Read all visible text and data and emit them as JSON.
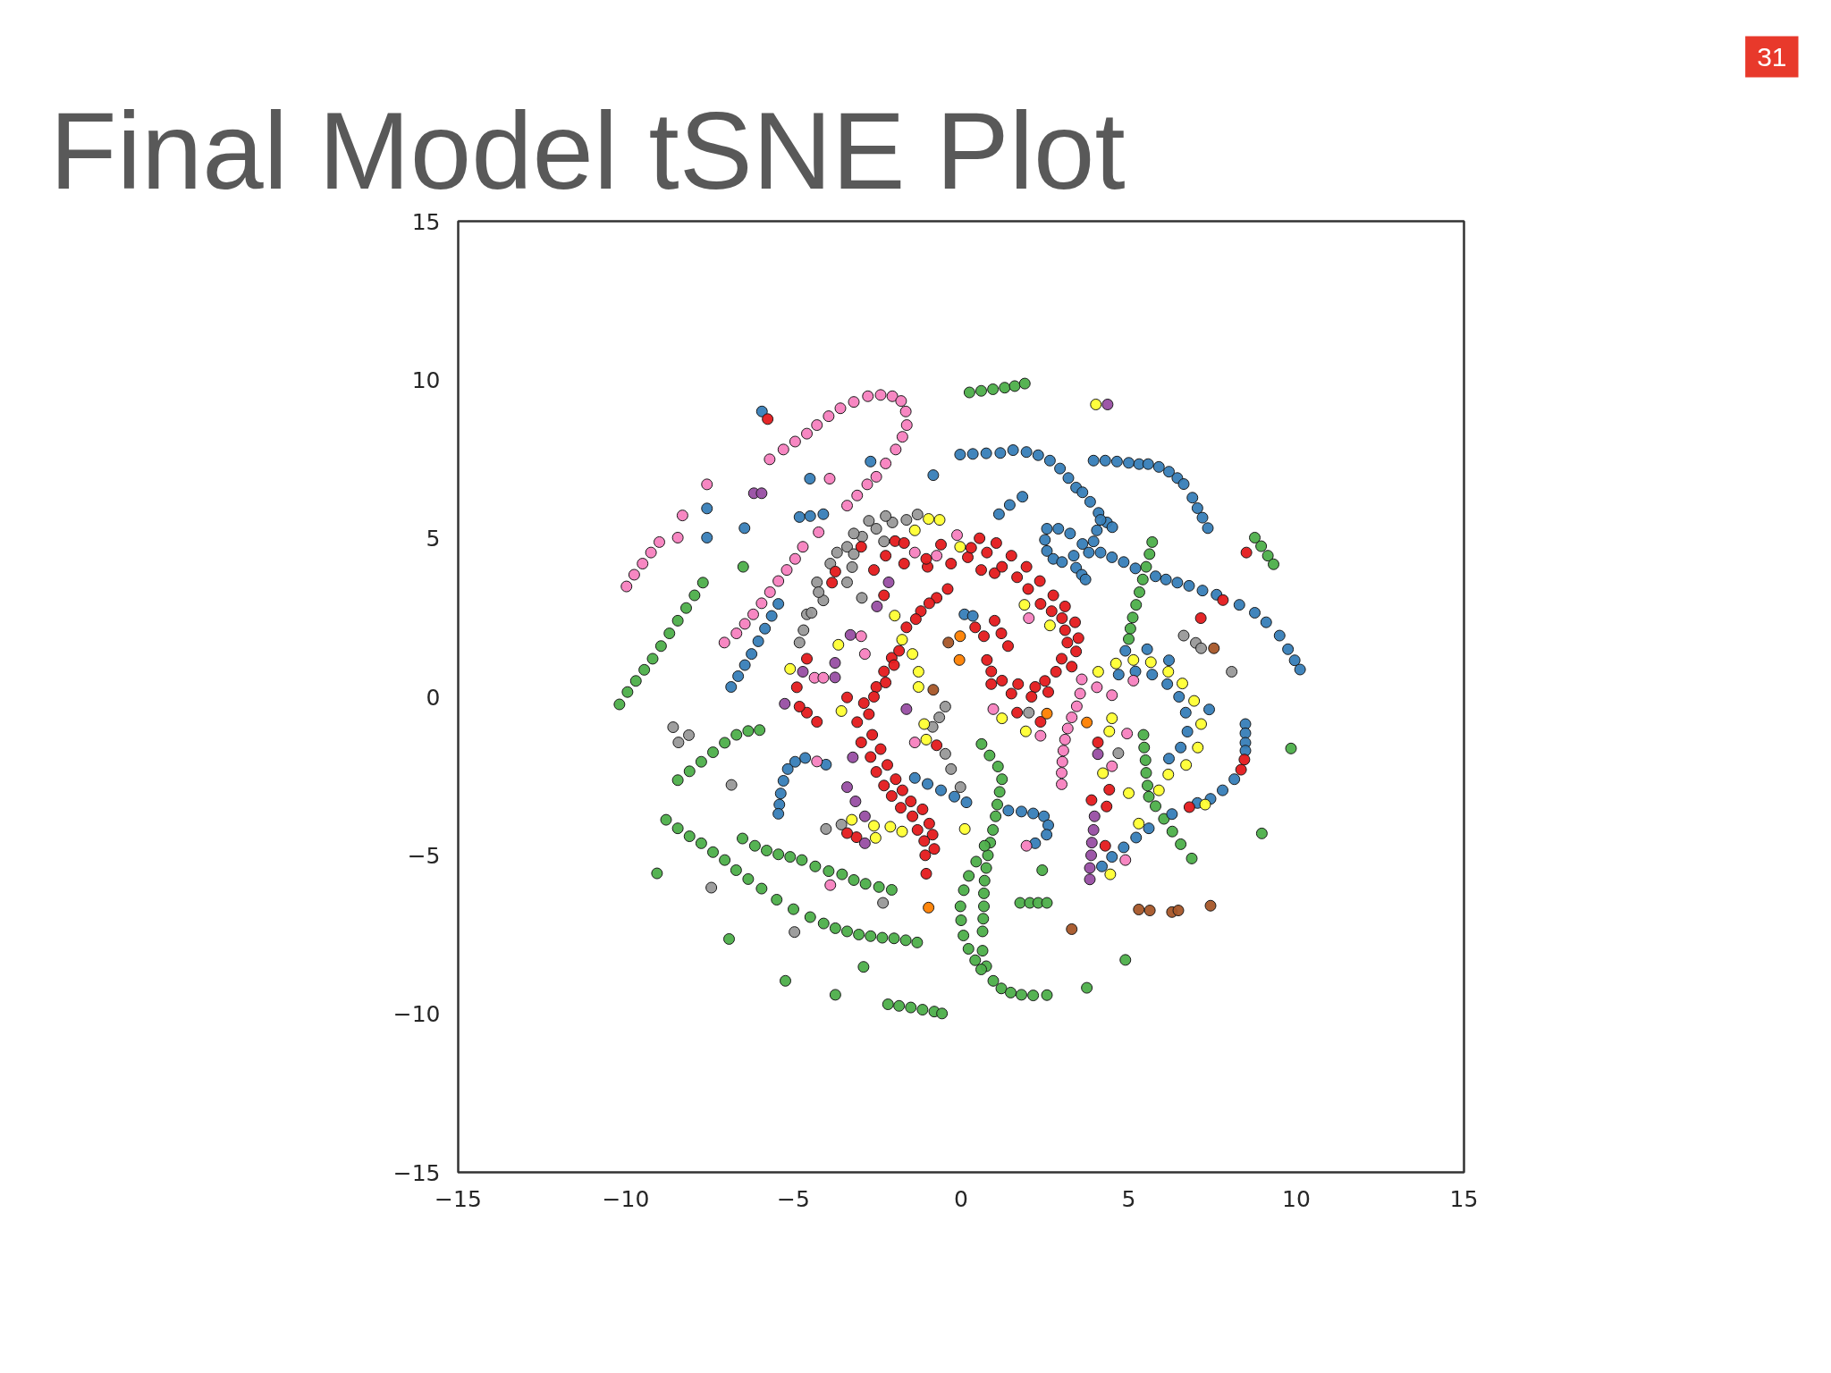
{
  "chart_data": {
    "type": "scatter",
    "title": "Final Model tSNE Plot",
    "annotations": [
      "31"
    ],
    "marker": "circle",
    "grid": false,
    "xlim": [
      -15,
      15
    ],
    "ylim": [
      -15,
      15
    ],
    "xticks": [
      {
        "value": -15,
        "label": "−15"
      },
      {
        "value": -10,
        "label": "−10"
      },
      {
        "value": -5,
        "label": "−5"
      },
      0,
      5,
      10,
      15
    ],
    "yticks": [
      {
        "value": -15,
        "label": "−15"
      },
      {
        "value": -10,
        "label": "−10"
      },
      {
        "value": -5,
        "label": "−5"
      },
      0,
      5,
      10,
      15
    ],
    "series": [
      {
        "color": "#999999",
        "x": [
          -4.82,
          -4.6,
          -4.3,
          -3.9,
          -3.4,
          -2.95,
          -2.53,
          -2.05,
          -1.63,
          -1.3,
          -3.4,
          -2.96,
          -4.11,
          -4.46,
          -3.2,
          -2.3,
          -4.7,
          -3.25,
          -3.7,
          -4.25,
          -2.75,
          -2.25,
          -3.2,
          -8.59,
          -8.43,
          -8.12,
          -6.85,
          -7.45,
          -4.97,
          -2.33,
          -4.03,
          -3.57,
          -0.85,
          -0.65,
          -0.47,
          -0.47,
          -0.3,
          6.64,
          7.0,
          7.16,
          8.07,
          -0.02,
          4.69,
          2.02
        ],
        "values": [
          1.71,
          2.6,
          3.61,
          4.2,
          4.73,
          5.05,
          5.3,
          5.5,
          5.58,
          5.75,
          3.61,
          3.12,
          3.04,
          2.65,
          4.5,
          4.9,
          2.1,
          4.09,
          4.55,
          3.3,
          5.55,
          5.7,
          5.15,
          -0.96,
          -1.44,
          -1.21,
          -2.78,
          -6.02,
          -7.42,
          -6.5,
          -4.17,
          -4.03,
          -0.95,
          -0.65,
          -0.31,
          -1.8,
          -2.28,
          1.93,
          1.7,
          1.53,
          0.79,
          -2.85,
          -1.78,
          -0.5
        ]
      },
      {
        "color": "#4daf4a",
        "x": [
          0.25,
          0.6,
          0.95,
          1.3,
          1.6,
          1.9,
          -10.19,
          -9.95,
          -9.7,
          -9.45,
          -9.2,
          -8.95,
          -8.7,
          -8.45,
          -8.2,
          -7.95,
          -7.7,
          -8.45,
          -8.1,
          -7.75,
          -7.4,
          -7.05,
          -6.7,
          -6.35,
          -6.01,
          -8.8,
          -8.45,
          -8.1,
          -7.75,
          -7.4,
          -7.05,
          -6.71,
          -6.35,
          -5.95,
          -5.5,
          -5.0,
          -4.5,
          -4.1,
          -3.75,
          -3.4,
          -3.05,
          -2.7,
          -2.35,
          -2.0,
          -1.65,
          -1.31,
          -6.52,
          -6.15,
          -5.8,
          -5.45,
          -5.1,
          -4.75,
          -4.35,
          -3.95,
          -3.55,
          -3.2,
          -2.85,
          -2.45,
          -2.07,
          -2.18,
          -1.85,
          -1.5,
          -1.15,
          -0.8,
          -0.57,
          0.61,
          0.85,
          1.1,
          1.22,
          1.15,
          1.08,
          1.03,
          0.95,
          0.87,
          0.8,
          0.75,
          0.7,
          0.68,
          0.68,
          0.66,
          0.64,
          0.64,
          0.75,
          0.96,
          1.2,
          1.48,
          1.8,
          2.15,
          2.56,
          0.7,
          0.45,
          0.23,
          0.08,
          -0.02,
          0.0,
          0.07,
          0.22,
          0.42,
          0.6,
          5.7,
          5.62,
          5.52,
          5.42,
          5.32,
          5.22,
          5.12,
          5.05,
          5.0,
          8.76,
          8.95,
          9.15,
          9.32,
          5.44,
          5.46,
          5.5,
          5.52,
          5.56,
          5.6,
          5.8,
          6.05,
          6.3,
          6.55,
          6.88,
          1.76,
          2.05,
          2.3,
          2.56,
          -6.5,
          -9.07,
          -6.92,
          -5.24,
          -3.75,
          -2.91,
          2.42,
          3.75,
          4.9,
          9.84,
          8.97
        ],
        "values": [
          9.6,
          9.65,
          9.7,
          9.75,
          9.8,
          9.88,
          -0.24,
          0.15,
          0.5,
          0.85,
          1.2,
          1.6,
          2.0,
          2.4,
          2.8,
          3.2,
          3.6,
          -2.63,
          -2.35,
          -2.05,
          -1.75,
          -1.45,
          -1.2,
          -1.08,
          -1.05,
          -3.88,
          -4.15,
          -4.4,
          -4.62,
          -4.9,
          -5.15,
          -5.47,
          -5.75,
          -6.05,
          -6.4,
          -6.7,
          -6.95,
          -7.15,
          -7.3,
          -7.4,
          -7.5,
          -7.55,
          -7.6,
          -7.62,
          -7.68,
          -7.75,
          -4.47,
          -4.7,
          -4.85,
          -4.97,
          -5.05,
          -5.15,
          -5.35,
          -5.5,
          -5.6,
          -5.78,
          -5.9,
          -6.0,
          -6.09,
          -9.7,
          -9.75,
          -9.8,
          -9.87,
          -9.93,
          -9.99,
          -1.49,
          -1.85,
          -2.2,
          -2.6,
          -3.0,
          -3.4,
          -3.77,
          -4.2,
          -4.6,
          -5.0,
          -5.4,
          -5.8,
          -6.2,
          -6.61,
          -7.0,
          -7.4,
          -8.01,
          -8.5,
          -8.96,
          -9.2,
          -9.33,
          -9.4,
          -9.42,
          -9.41,
          -4.7,
          -5.2,
          -5.65,
          -6.1,
          -6.61,
          -7.05,
          -7.53,
          -7.95,
          -8.31,
          -8.6,
          4.88,
          4.5,
          4.1,
          3.7,
          3.3,
          2.9,
          2.5,
          2.15,
          1.82,
          5.02,
          4.75,
          4.45,
          4.18,
          -1.2,
          -1.6,
          -2.0,
          -2.4,
          -2.8,
          -3.15,
          -3.45,
          -3.85,
          -4.25,
          -4.65,
          -5.1,
          -6.5,
          -6.5,
          -6.5,
          -6.5,
          4.1,
          -5.57,
          -7.64,
          -8.96,
          -9.4,
          -8.52,
          -5.47,
          -9.18,
          -8.3,
          -1.63,
          -4.31
        ]
      },
      {
        "color": "#377eb8",
        "x": [
          -5.94,
          -0.03,
          0.35,
          0.75,
          1.17,
          1.55,
          1.95,
          2.3,
          2.65,
          2.95,
          3.2,
          3.43,
          3.62,
          3.85,
          4.1,
          4.35,
          4.51,
          3.95,
          4.3,
          4.65,
          5.0,
          5.31,
          5.58,
          5.9,
          6.2,
          6.45,
          6.64,
          6.9,
          7.05,
          7.2,
          7.36,
          1.13,
          1.45,
          1.83,
          2.56,
          2.5,
          2.56,
          2.75,
          3.01,
          2.9,
          3.25,
          3.62,
          3.36,
          3.43,
          3.6,
          3.71,
          3.81,
          3.95,
          4.05,
          4.16,
          4.16,
          4.5,
          4.85,
          5.2,
          5.8,
          6.11,
          6.45,
          6.8,
          7.2,
          7.62,
          8.3,
          8.76,
          9.1,
          9.5,
          9.75,
          9.95,
          10.11,
          -4.51,
          -4.82,
          -4.5,
          -4.11,
          -2.7,
          -0.83,
          -7.58,
          -7.58,
          -6.46,
          -5.45,
          -5.65,
          -5.85,
          -6.05,
          -6.25,
          -6.45,
          -6.65,
          -6.86,
          -4.03,
          -4.65,
          -4.95,
          -5.17,
          -5.3,
          -5.38,
          -5.42,
          -5.45,
          -1.38,
          -1.0,
          -0.6,
          -0.2,
          0.16,
          1.41,
          1.8,
          2.15,
          2.47,
          2.6,
          2.55,
          2.21,
          4.9,
          5.55,
          6.2,
          7.4,
          4.7,
          5.2,
          5.7,
          6.15,
          6.5,
          6.7,
          6.75,
          6.55,
          6.2,
          4.2,
          4.5,
          4.85,
          5.22,
          5.6,
          6.29,
          7.05,
          7.44,
          7.8,
          8.15,
          8.48,
          8.48,
          8.48,
          8.48,
          0.1,
          0.35
        ],
        "values": [
          9.0,
          7.64,
          7.66,
          7.68,
          7.69,
          7.78,
          7.72,
          7.62,
          7.45,
          7.2,
          6.9,
          6.6,
          6.45,
          6.15,
          5.8,
          5.5,
          5.35,
          7.45,
          7.45,
          7.42,
          7.38,
          7.34,
          7.34,
          7.25,
          7.1,
          6.9,
          6.71,
          6.28,
          5.95,
          5.65,
          5.32,
          5.76,
          6.05,
          6.31,
          5.3,
          4.95,
          4.6,
          4.35,
          4.25,
          5.3,
          5.15,
          4.82,
          4.45,
          4.07,
          3.85,
          3.7,
          4.55,
          4.9,
          5.25,
          5.58,
          4.55,
          4.4,
          4.25,
          4.05,
          3.8,
          3.7,
          3.6,
          3.5,
          3.35,
          3.22,
          2.9,
          2.65,
          2.35,
          1.93,
          1.5,
          1.15,
          0.86,
          6.88,
          5.67,
          5.7,
          5.76,
          7.42,
          6.99,
          5.94,
          5.02,
          5.32,
          2.93,
          2.55,
          2.15,
          1.75,
          1.35,
          1.0,
          0.65,
          0.31,
          -2.14,
          -1.93,
          -2.05,
          -2.28,
          -2.65,
          -3.05,
          -3.4,
          -3.69,
          -2.56,
          -2.75,
          -2.95,
          -3.15,
          -3.33,
          -3.59,
          -3.62,
          -3.68,
          -3.77,
          -4.05,
          -4.35,
          -4.62,
          1.45,
          1.5,
          1.15,
          -0.4,
          0.7,
          0.8,
          0.7,
          0.4,
          0.0,
          -0.5,
          -1.1,
          -1.6,
          -1.95,
          -5.35,
          -5.05,
          -4.75,
          -4.44,
          -4.15,
          -3.7,
          -3.35,
          -3.22,
          -2.95,
          -2.6,
          -0.86,
          -1.15,
          -1.45,
          -1.7,
          2.6,
          2.55
        ]
      },
      {
        "color": "#f781bf",
        "x": [
          -5.71,
          -5.3,
          -4.95,
          -4.6,
          -4.3,
          -3.95,
          -3.6,
          -3.2,
          -2.78,
          -2.4,
          -2.05,
          -1.79,
          -1.65,
          -1.62,
          -1.75,
          -1.95,
          -2.25,
          -2.53,
          -2.8,
          -3.1,
          -3.4,
          -9.0,
          -9.25,
          -9.5,
          -9.75,
          -9.98,
          -4.72,
          -4.95,
          -5.2,
          -5.45,
          -5.7,
          -5.95,
          -6.2,
          -6.45,
          -6.7,
          -7.06,
          -7.58,
          -8.31,
          -8.45,
          -3.92,
          -4.25,
          -1.38,
          -0.73,
          -0.12,
          -2.98,
          -2.87,
          -4.37,
          -4.11,
          1.95,
          4.5,
          4.9,
          4.95,
          0.96,
          2.37,
          3.6,
          4.05,
          4.5,
          -3.9,
          -4.3,
          -1.38,
          3.0,
          3.0,
          3.02,
          3.05,
          3.1,
          3.18,
          3.3,
          3.45,
          3.55,
          2.02,
          5.14
        ],
        "values": [
          7.49,
          7.8,
          8.05,
          8.3,
          8.57,
          8.85,
          9.1,
          9.3,
          9.48,
          9.52,
          9.48,
          9.33,
          9.0,
          8.57,
          8.2,
          7.8,
          7.36,
          6.94,
          6.7,
          6.35,
          6.03,
          4.88,
          4.55,
          4.2,
          3.85,
          3.48,
          4.73,
          4.35,
          4.0,
          3.65,
          3.3,
          2.95,
          2.6,
          2.3,
          2.0,
          1.71,
          6.7,
          5.72,
          5.02,
          6.88,
          5.19,
          4.55,
          4.45,
          5.1,
          1.91,
          1.35,
          0.6,
          0.6,
          -4.7,
          -2.19,
          -5.15,
          -1.16,
          -0.39,
          -1.23,
          0.55,
          0.3,
          0.05,
          -5.94,
          -2.04,
          -1.44,
          -2.76,
          -2.4,
          -2.05,
          -1.7,
          -1.35,
          -1.0,
          -0.65,
          -0.3,
          0.1,
          2.48,
          0.51
        ]
      },
      {
        "color": "#e41a1c",
        "x": [
          -4.6,
          -4.9,
          -4.6,
          -2.6,
          -2.3,
          -1.7,
          -1.0,
          -0.6,
          -0.3,
          0.2,
          0.6,
          1.0,
          -0.73,
          -1.2,
          -1.63,
          -2.07,
          -2.3,
          -2.53,
          -2.9,
          -3.4,
          -3.1,
          -2.98,
          -2.7,
          -2.53,
          -2.3,
          -2.07,
          -1.8,
          -1.45,
          -1.3,
          -1.1,
          -1.07,
          -1.04,
          0.3,
          0.77,
          1.22,
          1.67,
          2.0,
          2.37,
          2.7,
          3.01,
          3.1,
          3.17,
          3.0,
          2.83,
          2.5,
          2.21,
          1.7,
          1.22,
          0.9,
          0.77,
          0.68,
          0.42,
          1.0,
          1.2,
          1.4,
          -5.77,
          8.51,
          7.15,
          7.81,
          3.43,
          -3.75,
          -3.85,
          -2.98,
          -1.97,
          -4.82,
          -4.3,
          -3.12,
          -3.4,
          -0.73,
          4.08,
          4.42,
          3.89,
          4.34,
          4.3,
          8.35,
          8.45,
          6.81,
          1.67,
          2.37,
          -0.4,
          -0.95,
          -1.35,
          -1.85,
          -2.0,
          -2.25,
          -2.6,
          -2.75,
          -2.65,
          -2.4,
          -2.2,
          -1.95,
          -1.75,
          -1.5,
          -1.15,
          -0.95,
          -0.85,
          -0.8,
          0.55,
          1.05,
          1.5,
          1.95,
          2.35,
          2.75,
          3.1,
          3.4,
          3.5,
          3.3,
          0.9,
          1.5,
          2.1,
          2.6,
          -1.04,
          -1.7,
          -2.25
        ],
        "values": [
          1.2,
          0.3,
          -0.5,
          4.0,
          3.2,
          4.2,
          4.1,
          4.8,
          4.2,
          4.4,
          4.0,
          3.9,
          3.12,
          2.7,
          2.19,
          1.23,
          0.8,
          0.31,
          -0.2,
          -0.02,
          -0.8,
          -1.44,
          -1.9,
          -2.37,
          -2.8,
          -3.13,
          -3.5,
          -3.77,
          -4.2,
          -4.55,
          -5.0,
          -5.58,
          4.7,
          4.55,
          4.1,
          3.77,
          3.4,
          2.93,
          2.7,
          2.48,
          2.1,
          1.71,
          1.2,
          0.79,
          0.5,
          0.31,
          0.4,
          0.51,
          0.8,
          1.16,
          1.91,
          2.19,
          2.4,
          2.0,
          1.6,
          8.76,
          4.55,
          2.48,
          3.05,
          1.43,
          3.95,
          3.6,
          4.73,
          4.91,
          -0.31,
          -0.79,
          -4.43,
          -4.3,
          -1.53,
          -1.44,
          -2.93,
          -3.26,
          -3.46,
          -4.7,
          -2.3,
          -1.98,
          -3.48,
          -0.5,
          -0.79,
          3.4,
          2.95,
          2.45,
          1.45,
          1.0,
          0.45,
          0.0,
          -0.55,
          -1.2,
          -1.65,
          -2.15,
          -2.6,
          -2.95,
          -3.3,
          -3.55,
          -4.0,
          -4.35,
          -4.8,
          5.0,
          4.85,
          4.45,
          4.1,
          3.65,
          3.2,
          2.85,
          2.35,
          1.85,
          0.95,
          0.4,
          0.1,
          0.0,
          0.15,
          4.35,
          4.85,
          4.45
        ]
      },
      {
        "color": "#984ea3",
        "x": [
          4.37,
          -6.18,
          -5.95,
          -2.16,
          -2.51,
          -3.3,
          -3.76,
          -3.76,
          -4.72,
          -5.26,
          -3.23,
          -3.4,
          -3.15,
          -2.87,
          -2.87,
          -1.63,
          3.98,
          3.95,
          3.9,
          3.88,
          3.84,
          3.84,
          4.08
        ],
        "values": [
          9.22,
          6.42,
          6.42,
          3.61,
          2.85,
          1.95,
          1.07,
          0.61,
          0.79,
          -0.22,
          -1.91,
          -2.85,
          -3.3,
          -3.77,
          -4.62,
          -0.39,
          -3.77,
          -4.2,
          -4.6,
          -5.0,
          -5.4,
          -5.76,
          -1.81
        ]
      },
      {
        "color": "#ffff33",
        "x": [
          4.09,
          4.62,
          5.14,
          5.66,
          6.18,
          6.6,
          6.95,
          7.16,
          7.06,
          6.71,
          6.18,
          4.02,
          -0.97,
          -0.64,
          -1.38,
          -0.03,
          -1.98,
          -1.76,
          -1.45,
          -1.27,
          -1.27,
          -3.66,
          -5.1,
          1.89,
          2.65,
          -3.57,
          -1.1,
          -1.04,
          -3.26,
          -2.6,
          -2.55,
          -2.11,
          -1.76,
          0.11,
          4.5,
          4.42,
          4.23,
          5.0,
          5.3,
          4.45,
          7.28,
          1.22,
          1.93,
          5.9
        ],
        "values": [
          0.79,
          1.05,
          1.16,
          1.09,
          0.79,
          0.42,
          -0.13,
          -0.86,
          -1.6,
          -2.15,
          -2.45,
          9.22,
          5.61,
          5.58,
          5.25,
          4.73,
          2.56,
          1.8,
          1.35,
          0.79,
          0.31,
          1.64,
          0.88,
          2.9,
          2.25,
          -0.45,
          -0.86,
          -1.35,
          -3.88,
          -4.07,
          -4.45,
          -4.1,
          -4.25,
          -4.17,
          -0.68,
          -1.09,
          -2.41,
          -3.04,
          -4.0,
          -5.6,
          -3.4,
          -0.68,
          -1.09,
          -2.95
        ]
      },
      {
        "color": "#ff7f00",
        "x": [
          3.75,
          2.56,
          -0.97,
          -0.03,
          -0.05
        ],
        "values": [
          -0.81,
          -0.53,
          -6.65,
          1.91,
          1.16
        ]
      },
      {
        "color": "#a65628",
        "x": [
          5.3,
          5.63,
          6.29,
          6.48,
          7.44,
          3.3,
          7.54,
          -0.38,
          -0.83
        ],
        "values": [
          -6.71,
          -6.74,
          -6.79,
          -6.74,
          -6.59,
          -7.33,
          1.53,
          1.71,
          0.22
        ]
      }
    ]
  }
}
